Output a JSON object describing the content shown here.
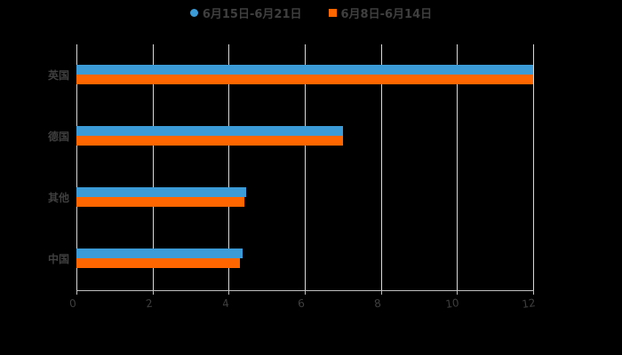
{
  "legend": [
    {
      "label": "6月15日-6月21日",
      "color": "#3b9bd6",
      "shape": "circle"
    },
    {
      "label": "6月8日-6月14日",
      "color": "#ff6600",
      "shape": "square"
    }
  ],
  "chart_data": {
    "type": "bar",
    "orientation": "horizontal",
    "title": "",
    "categories": [
      "英国",
      "德国",
      "其他",
      "中国"
    ],
    "series": [
      {
        "name": "6月15日-6月21日",
        "color": "#3b9bd6",
        "values": [
          12.0,
          7.0,
          4.45,
          4.36
        ]
      },
      {
        "name": "6月8日-6月14日",
        "color": "#ff6600",
        "values": [
          12.0,
          7.0,
          4.41,
          4.29
        ]
      }
    ],
    "xlabel": "",
    "ylabel": "",
    "xlim": [
      0,
      12
    ],
    "xticks": [
      "0",
      "2",
      "4",
      "6",
      "8",
      "10",
      "12"
    ],
    "grid": true,
    "legend_position": "top"
  }
}
